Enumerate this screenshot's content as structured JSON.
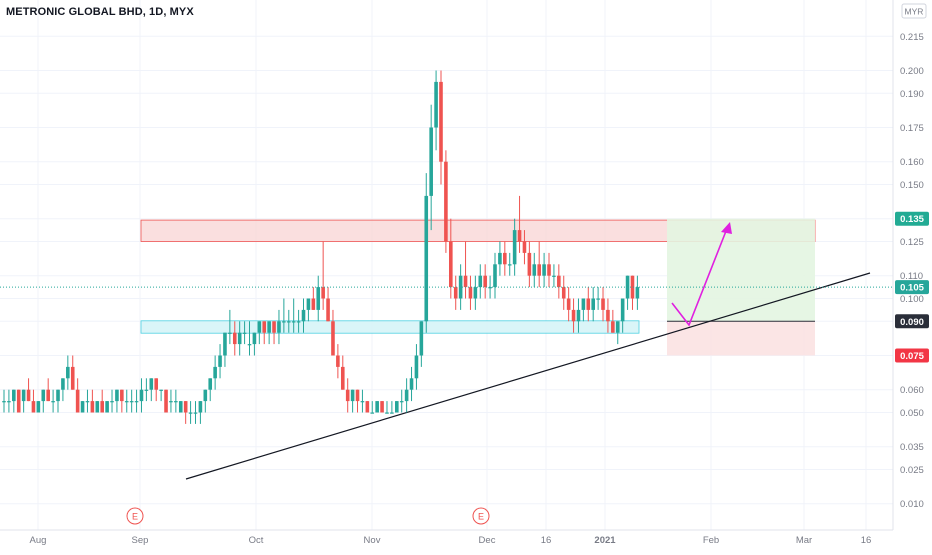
{
  "header": {
    "symbol_title": "METRONIC GLOBAL BHD, 1D, MYX"
  },
  "price_axis": {
    "currency": "MYR",
    "ticks": [
      "0.215",
      "0.200",
      "0.190",
      "0.175",
      "0.160",
      "0.150",
      "0.135",
      "0.125",
      "0.110",
      "0.100",
      "0.090",
      "0.075",
      "0.060",
      "0.050",
      "0.035",
      "0.025",
      "0.010"
    ]
  },
  "time_axis": {
    "labels": [
      "Aug",
      "Sep",
      "Oct",
      "Nov",
      "Dec",
      "16",
      "2021",
      "Feb",
      "Mar",
      "16"
    ]
  },
  "badges": [
    {
      "label": "0.135",
      "value": 0.135,
      "color": "#22ab94",
      "text_color": "#ffffff"
    },
    {
      "label": "0.105",
      "value": 0.105,
      "color": "#26a69a",
      "text_color": "#ffffff"
    },
    {
      "label": "0.090",
      "value": 0.09,
      "color": "#2a2e39",
      "text_color": "#ffffff"
    },
    {
      "label": "0.075",
      "value": 0.075,
      "color": "#f23645",
      "text_color": "#ffffff"
    }
  ],
  "event_markers": [
    {
      "label": "E"
    },
    {
      "label": "E"
    }
  ],
  "colors": {
    "up": "#26a69a",
    "down": "#ef5350",
    "resistance_zone": "#f8d4d4",
    "support_zone": "#d6f4f7",
    "profit_zone": "#e3f5e1",
    "loss_zone": "#fbe2e2",
    "arrow": "#e020e0",
    "trendline": "#131722"
  },
  "chart_data": {
    "type": "candlestick",
    "title": "METRONIC GLOBAL BHD, 1D, MYX",
    "ylim": [
      0.0,
      0.22
    ],
    "y_ticks": [
      0.215,
      0.2,
      0.19,
      0.175,
      0.16,
      0.15,
      0.135,
      0.125,
      0.11,
      0.1,
      0.09,
      0.075,
      0.06,
      0.05,
      0.035,
      0.025,
      0.01
    ],
    "x_labels": [
      "Aug",
      "Sep",
      "Oct",
      "Nov",
      "Dec",
      "16",
      "2021",
      "Feb",
      "Mar",
      "16"
    ],
    "last_price": 0.105,
    "zones": {
      "resistance": [
        0.125,
        0.13
      ],
      "support": [
        0.085,
        0.09
      ]
    },
    "long_position": {
      "entry": 0.09,
      "target": 0.135,
      "stop": 0.075
    },
    "trendline": [
      {
        "x_label": "Sep",
        "price": 0.025
      },
      {
        "x_label": "Mar",
        "price": 0.11
      }
    ],
    "candles": [
      [
        0.055,
        0.06,
        0.05,
        0.055
      ],
      [
        0.055,
        0.06,
        0.05,
        0.055
      ],
      [
        0.055,
        0.06,
        0.05,
        0.06
      ],
      [
        0.06,
        0.06,
        0.05,
        0.05
      ],
      [
        0.055,
        0.06,
        0.05,
        0.06
      ],
      [
        0.06,
        0.065,
        0.055,
        0.055
      ],
      [
        0.055,
        0.06,
        0.05,
        0.05
      ],
      [
        0.05,
        0.055,
        0.05,
        0.055
      ],
      [
        0.055,
        0.06,
        0.05,
        0.06
      ],
      [
        0.06,
        0.065,
        0.055,
        0.055
      ],
      [
        0.055,
        0.06,
        0.05,
        0.055
      ],
      [
        0.055,
        0.06,
        0.05,
        0.06
      ],
      [
        0.06,
        0.065,
        0.055,
        0.065
      ],
      [
        0.065,
        0.075,
        0.06,
        0.07
      ],
      [
        0.07,
        0.075,
        0.06,
        0.06
      ],
      [
        0.06,
        0.065,
        0.05,
        0.05
      ],
      [
        0.05,
        0.055,
        0.05,
        0.055
      ],
      [
        0.055,
        0.06,
        0.05,
        0.055
      ],
      [
        0.055,
        0.06,
        0.05,
        0.05
      ],
      [
        0.05,
        0.055,
        0.05,
        0.055
      ],
      [
        0.055,
        0.06,
        0.05,
        0.05
      ],
      [
        0.05,
        0.055,
        0.05,
        0.055
      ],
      [
        0.055,
        0.06,
        0.05,
        0.055
      ],
      [
        0.055,
        0.06,
        0.05,
        0.06
      ],
      [
        0.06,
        0.06,
        0.05,
        0.055
      ],
      [
        0.055,
        0.06,
        0.05,
        0.055
      ],
      [
        0.055,
        0.06,
        0.05,
        0.055
      ],
      [
        0.055,
        0.06,
        0.05,
        0.055
      ],
      [
        0.055,
        0.065,
        0.05,
        0.06
      ],
      [
        0.06,
        0.065,
        0.055,
        0.06
      ],
      [
        0.06,
        0.065,
        0.055,
        0.065
      ],
      [
        0.065,
        0.065,
        0.055,
        0.06
      ],
      [
        0.06,
        0.06,
        0.055,
        0.06
      ],
      [
        0.06,
        0.06,
        0.05,
        0.05
      ],
      [
        0.055,
        0.06,
        0.05,
        0.055
      ],
      [
        0.055,
        0.06,
        0.05,
        0.055
      ],
      [
        0.05,
        0.055,
        0.05,
        0.055
      ],
      [
        0.055,
        0.055,
        0.045,
        0.05
      ],
      [
        0.05,
        0.055,
        0.045,
        0.05
      ],
      [
        0.05,
        0.055,
        0.045,
        0.05
      ],
      [
        0.05,
        0.055,
        0.045,
        0.055
      ],
      [
        0.055,
        0.06,
        0.05,
        0.06
      ],
      [
        0.06,
        0.065,
        0.055,
        0.065
      ],
      [
        0.065,
        0.075,
        0.06,
        0.07
      ],
      [
        0.07,
        0.08,
        0.065,
        0.075
      ],
      [
        0.075,
        0.085,
        0.07,
        0.085
      ],
      [
        0.085,
        0.095,
        0.08,
        0.085
      ],
      [
        0.085,
        0.09,
        0.075,
        0.08
      ],
      [
        0.08,
        0.09,
        0.075,
        0.085
      ],
      [
        0.085,
        0.09,
        0.08,
        0.085
      ],
      [
        0.08,
        0.09,
        0.075,
        0.08
      ],
      [
        0.08,
        0.085,
        0.075,
        0.085
      ],
      [
        0.085,
        0.09,
        0.08,
        0.09
      ],
      [
        0.09,
        0.09,
        0.08,
        0.085
      ],
      [
        0.085,
        0.09,
        0.08,
        0.09
      ],
      [
        0.09,
        0.09,
        0.08,
        0.085
      ],
      [
        0.085,
        0.095,
        0.08,
        0.09
      ],
      [
        0.09,
        0.1,
        0.085,
        0.09
      ],
      [
        0.09,
        0.095,
        0.085,
        0.09
      ],
      [
        0.09,
        0.1,
        0.085,
        0.09
      ],
      [
        0.09,
        0.095,
        0.085,
        0.09
      ],
      [
        0.09,
        0.1,
        0.085,
        0.095
      ],
      [
        0.095,
        0.1,
        0.09,
        0.1
      ],
      [
        0.1,
        0.105,
        0.095,
        0.095
      ],
      [
        0.095,
        0.11,
        0.09,
        0.105
      ],
      [
        0.105,
        0.125,
        0.095,
        0.1
      ],
      [
        0.1,
        0.105,
        0.09,
        0.09
      ],
      [
        0.09,
        0.095,
        0.075,
        0.075
      ],
      [
        0.075,
        0.08,
        0.065,
        0.07
      ],
      [
        0.07,
        0.075,
        0.06,
        0.06
      ],
      [
        0.06,
        0.065,
        0.05,
        0.055
      ],
      [
        0.055,
        0.06,
        0.05,
        0.06
      ],
      [
        0.06,
        0.06,
        0.05,
        0.055
      ],
      [
        0.055,
        0.06,
        0.05,
        0.055
      ],
      [
        0.055,
        0.055,
        0.05,
        0.05
      ],
      [
        0.05,
        0.055,
        0.05,
        0.05
      ],
      [
        0.05,
        0.055,
        0.05,
        0.055
      ],
      [
        0.055,
        0.055,
        0.05,
        0.05
      ],
      [
        0.05,
        0.055,
        0.05,
        0.05
      ],
      [
        0.05,
        0.055,
        0.05,
        0.05
      ],
      [
        0.05,
        0.055,
        0.05,
        0.055
      ],
      [
        0.055,
        0.06,
        0.05,
        0.055
      ],
      [
        0.055,
        0.065,
        0.05,
        0.06
      ],
      [
        0.06,
        0.07,
        0.055,
        0.065
      ],
      [
        0.065,
        0.08,
        0.06,
        0.075
      ],
      [
        0.075,
        0.09,
        0.07,
        0.09
      ],
      [
        0.09,
        0.155,
        0.085,
        0.145
      ],
      [
        0.145,
        0.185,
        0.13,
        0.175
      ],
      [
        0.175,
        0.2,
        0.165,
        0.195
      ],
      [
        0.195,
        0.2,
        0.15,
        0.16
      ],
      [
        0.16,
        0.165,
        0.12,
        0.125
      ],
      [
        0.125,
        0.135,
        0.1,
        0.105
      ],
      [
        0.105,
        0.11,
        0.095,
        0.1
      ],
      [
        0.1,
        0.115,
        0.095,
        0.11
      ],
      [
        0.11,
        0.125,
        0.1,
        0.105
      ],
      [
        0.105,
        0.11,
        0.095,
        0.1
      ],
      [
        0.1,
        0.11,
        0.095,
        0.105
      ],
      [
        0.105,
        0.115,
        0.1,
        0.11
      ],
      [
        0.11,
        0.115,
        0.1,
        0.105
      ],
      [
        0.105,
        0.11,
        0.1,
        0.105
      ],
      [
        0.105,
        0.12,
        0.1,
        0.115
      ],
      [
        0.115,
        0.125,
        0.11,
        0.12
      ],
      [
        0.12,
        0.125,
        0.11,
        0.115
      ],
      [
        0.115,
        0.12,
        0.11,
        0.115
      ],
      [
        0.115,
        0.135,
        0.11,
        0.13
      ],
      [
        0.13,
        0.145,
        0.12,
        0.125
      ],
      [
        0.125,
        0.13,
        0.115,
        0.12
      ],
      [
        0.12,
        0.125,
        0.105,
        0.11
      ],
      [
        0.11,
        0.12,
        0.105,
        0.115
      ],
      [
        0.115,
        0.125,
        0.105,
        0.11
      ],
      [
        0.11,
        0.12,
        0.105,
        0.115
      ],
      [
        0.115,
        0.12,
        0.105,
        0.11
      ],
      [
        0.11,
        0.115,
        0.105,
        0.11
      ],
      [
        0.11,
        0.115,
        0.1,
        0.105
      ],
      [
        0.105,
        0.11,
        0.095,
        0.1
      ],
      [
        0.1,
        0.105,
        0.09,
        0.095
      ],
      [
        0.095,
        0.1,
        0.085,
        0.09
      ],
      [
        0.09,
        0.1,
        0.085,
        0.095
      ],
      [
        0.095,
        0.1,
        0.09,
        0.1
      ],
      [
        0.1,
        0.105,
        0.09,
        0.095
      ],
      [
        0.095,
        0.105,
        0.09,
        0.1
      ],
      [
        0.1,
        0.105,
        0.095,
        0.1
      ],
      [
        0.1,
        0.105,
        0.09,
        0.095
      ],
      [
        0.095,
        0.1,
        0.085,
        0.09
      ],
      [
        0.09,
        0.095,
        0.085,
        0.085
      ],
      [
        0.085,
        0.09,
        0.08,
        0.09
      ],
      [
        0.09,
        0.1,
        0.085,
        0.1
      ],
      [
        0.1,
        0.11,
        0.095,
        0.11
      ],
      [
        0.11,
        0.11,
        0.095,
        0.1
      ],
      [
        0.1,
        0.11,
        0.095,
        0.105
      ]
    ]
  }
}
